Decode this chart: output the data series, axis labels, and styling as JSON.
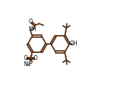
{
  "bg": "#ffffff",
  "lc": "#5c3317",
  "lw": 1.4,
  "tc": "#000000",
  "figsize": [
    1.69,
    1.28
  ],
  "dpi": 100,
  "xlim": [
    -0.05,
    1.05
  ],
  "ylim": [
    0.0,
    1.0
  ]
}
